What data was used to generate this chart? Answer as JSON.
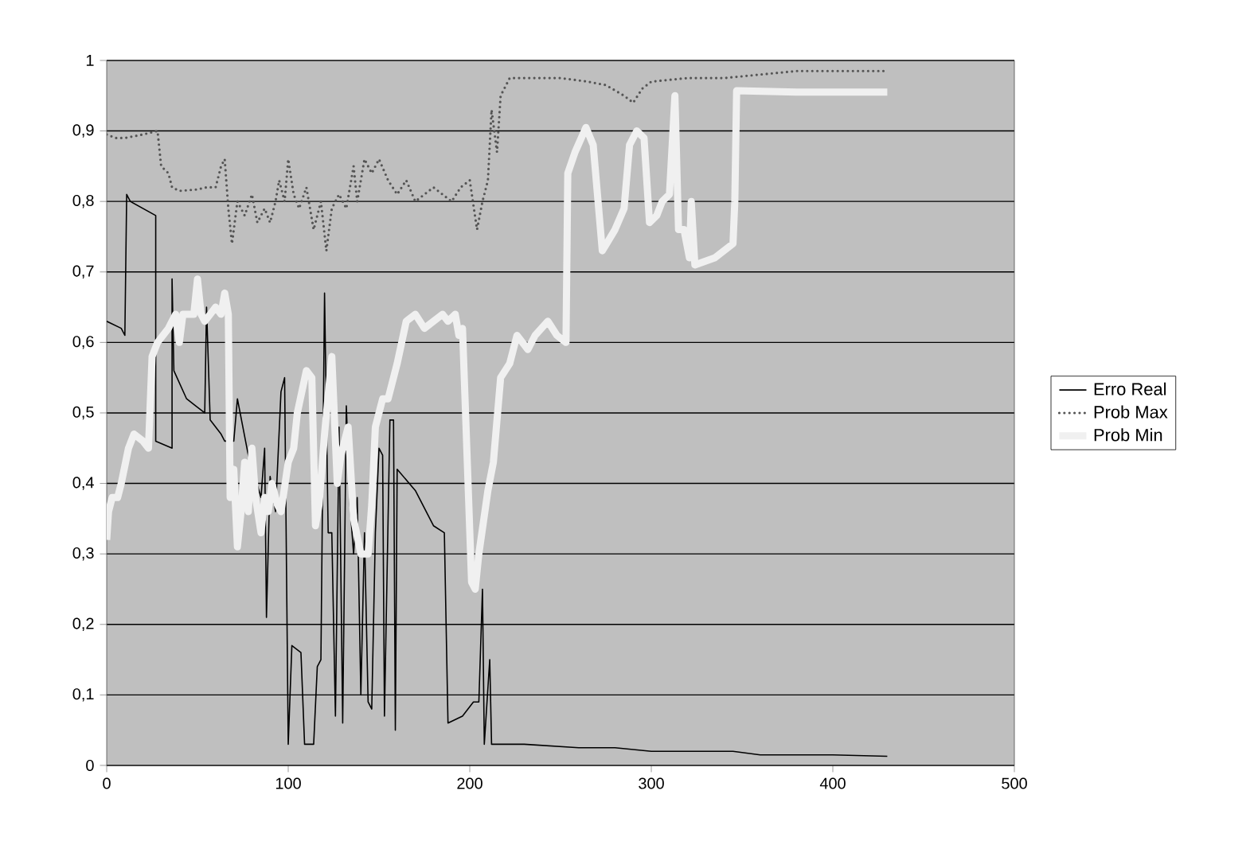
{
  "chart_data": {
    "type": "line",
    "xlim": [
      0,
      500
    ],
    "xticks": [
      0,
      100,
      200,
      300,
      400,
      500
    ],
    "ylim": [
      0,
      1
    ],
    "yticks": [
      0,
      {
        "value": 0.1,
        "label": "0,1"
      },
      {
        "value": 0.2,
        "label": "0,2"
      },
      {
        "value": 0.3,
        "label": "0,3"
      },
      {
        "value": 0.4,
        "label": "0,4"
      },
      {
        "value": 0.5,
        "label": "0,5"
      },
      {
        "value": 0.6,
        "label": "0,6"
      },
      {
        "value": 0.7,
        "label": "0,7"
      },
      {
        "value": 0.8,
        "label": "0,8"
      },
      {
        "value": 0.9,
        "label": "0,9"
      },
      1
    ],
    "grid": "y",
    "legend": "right",
    "marker": "none",
    "series": [
      {
        "name": "Erro Real",
        "color": "#000000",
        "line_style": "solid",
        "x": [
          0,
          8,
          10,
          11,
          13,
          27,
          27,
          36,
          36,
          37,
          44,
          54,
          55,
          57,
          63,
          65,
          70,
          72,
          74,
          78,
          80,
          85,
          87,
          88,
          90,
          93,
          96,
          98,
          100,
          102,
          107,
          109,
          114,
          116,
          118,
          120,
          122,
          124,
          126,
          128,
          130,
          132,
          134,
          136,
          138,
          140,
          142,
          144,
          146,
          148,
          150,
          152,
          153,
          156,
          158,
          159,
          160,
          170,
          180,
          186,
          188,
          196,
          202,
          205,
          207,
          208,
          211,
          212,
          230,
          260,
          280,
          300,
          320,
          345,
          360,
          400,
          430
        ],
        "values": [
          0.63,
          0.62,
          0.61,
          0.81,
          0.8,
          0.78,
          0.46,
          0.45,
          0.69,
          0.56,
          0.52,
          0.5,
          0.65,
          0.49,
          0.47,
          0.46,
          0.46,
          0.52,
          null,
          0.44,
          null,
          0.38,
          0.45,
          0.21,
          0.41,
          0.36,
          0.53,
          0.55,
          0.03,
          0.17,
          0.16,
          0.03,
          0.03,
          0.14,
          0.15,
          0.67,
          0.33,
          0.33,
          0.07,
          0.48,
          0.06,
          0.51,
          0.37,
          0.3,
          0.38,
          0.1,
          0.33,
          0.09,
          0.08,
          0.33,
          0.45,
          0.44,
          0.07,
          0.49,
          0.49,
          0.05,
          0.42,
          0.39,
          0.34,
          0.33,
          0.06,
          0.07,
          0.09,
          0.09,
          0.25,
          0.03,
          0.15,
          0.03,
          0.03,
          0.025,
          0.025,
          0.02,
          0.02,
          0.02,
          0.015,
          0.015,
          0.013
        ]
      },
      {
        "name": "Prob Max",
        "color": "#555555",
        "line_style": "dotted",
        "x": [
          0,
          5,
          10,
          20,
          28,
          30,
          34,
          36,
          40,
          50,
          55,
          60,
          63,
          65,
          67,
          69,
          72,
          76,
          80,
          83,
          87,
          90,
          93,
          95,
          98,
          100,
          103,
          106,
          110,
          114,
          118,
          121,
          124,
          128,
          132,
          136,
          138,
          142,
          146,
          150,
          155,
          160,
          165,
          170,
          175,
          180,
          185,
          190,
          195,
          200,
          204,
          207,
          210,
          212,
          215,
          217,
          219,
          222,
          230,
          250,
          265,
          275,
          285,
          290,
          295,
          300,
          320,
          340,
          360,
          380,
          400,
          415,
          430
        ],
        "values": [
          0.895,
          0.89,
          0.89,
          0.895,
          0.9,
          0.85,
          0.84,
          0.82,
          0.815,
          0.817,
          0.82,
          0.82,
          0.85,
          0.86,
          0.79,
          0.74,
          0.8,
          0.78,
          0.81,
          0.77,
          0.79,
          0.77,
          0.8,
          0.83,
          0.8,
          0.86,
          0.81,
          0.79,
          0.82,
          0.76,
          0.8,
          0.73,
          0.79,
          0.81,
          0.79,
          0.85,
          0.8,
          0.86,
          0.84,
          0.86,
          0.83,
          0.81,
          0.83,
          0.8,
          0.81,
          0.82,
          0.81,
          0.8,
          0.82,
          0.83,
          0.76,
          0.8,
          0.83,
          0.93,
          0.87,
          0.95,
          0.96,
          0.975,
          0.975,
          0.975,
          0.97,
          0.965,
          0.95,
          0.94,
          0.96,
          0.97,
          0.975,
          0.975,
          0.98,
          0.985,
          0.985,
          0.985,
          0.985
        ]
      },
      {
        "name": "Prob Min",
        "color": "#f0f0f0",
        "line_style": "solid",
        "x": [
          0,
          1,
          3,
          6,
          8,
          12,
          15,
          20,
          23,
          25,
          28,
          31,
          34,
          38,
          40,
          42,
          45,
          48,
          50,
          52,
          54,
          57,
          60,
          63,
          65,
          67,
          68,
          70,
          72,
          74,
          76,
          78,
          80,
          82,
          85,
          87,
          89,
          91,
          94,
          96,
          100,
          103,
          105,
          110,
          113,
          115,
          117,
          120,
          124,
          127,
          129,
          133,
          136,
          140,
          144,
          146,
          148,
          152,
          155,
          160,
          165,
          170,
          175,
          180,
          185,
          188,
          192,
          194,
          196,
          201,
          203,
          205,
          210,
          213,
          217,
          222,
          226,
          232,
          236,
          243,
          248,
          253,
          254,
          258,
          264,
          268,
          273,
          280,
          285,
          288,
          292,
          296,
          299,
          303,
          306,
          310,
          313,
          315,
          318,
          321,
          322,
          324,
          335,
          345,
          346,
          347,
          380,
          430
        ],
        "values": [
          0.32,
          0.36,
          0.38,
          0.38,
          0.4,
          0.45,
          0.47,
          0.46,
          0.45,
          0.58,
          0.6,
          0.61,
          0.62,
          0.64,
          0.6,
          0.64,
          0.64,
          0.64,
          0.69,
          0.64,
          0.63,
          0.64,
          0.65,
          0.64,
          0.67,
          0.64,
          0.38,
          0.42,
          0.31,
          0.36,
          0.43,
          0.36,
          0.45,
          0.38,
          0.33,
          0.38,
          0.36,
          0.4,
          0.37,
          0.36,
          0.43,
          0.45,
          0.5,
          0.56,
          0.55,
          0.34,
          0.37,
          0.47,
          0.58,
          0.4,
          0.44,
          0.48,
          0.35,
          0.3,
          0.3,
          0.37,
          0.48,
          0.52,
          0.52,
          0.57,
          0.63,
          0.64,
          0.62,
          0.63,
          0.64,
          0.63,
          0.64,
          0.61,
          0.62,
          0.26,
          0.25,
          0.3,
          0.39,
          0.43,
          0.55,
          0.57,
          0.61,
          0.59,
          0.61,
          0.63,
          0.61,
          0.6,
          0.84,
          0.87,
          0.905,
          0.88,
          0.73,
          0.76,
          0.79,
          0.88,
          0.9,
          0.89,
          0.77,
          0.78,
          0.8,
          0.81,
          0.95,
          0.76,
          0.76,
          0.72,
          0.8,
          0.71,
          0.72,
          0.74,
          0.8,
          0.957,
          0.955,
          0.955
        ]
      }
    ]
  }
}
